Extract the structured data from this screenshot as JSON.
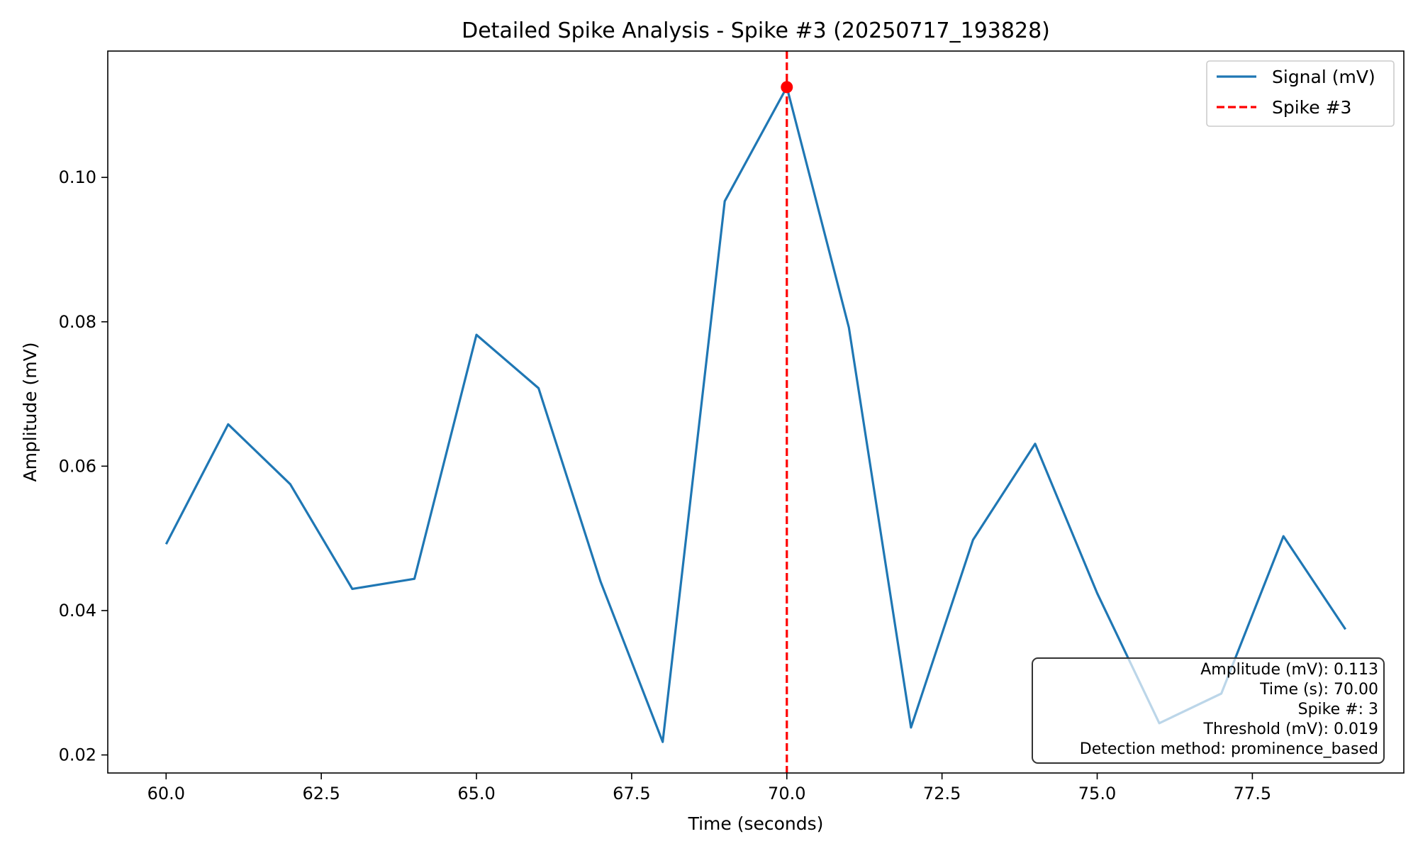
{
  "chart_data": {
    "type": "line",
    "title": "Detailed Spike Analysis - Spike #3 (20250717_193828)",
    "xlabel": "Time (seconds)",
    "ylabel": "Amplitude (mV)",
    "xlim": [
      59.06,
      79.94
    ],
    "ylim": [
      0.0175,
      0.1175
    ],
    "xticks": [
      60.0,
      62.5,
      65.0,
      67.5,
      70.0,
      72.5,
      75.0,
      77.5
    ],
    "xtick_labels": [
      "60.0",
      "62.5",
      "65.0",
      "67.5",
      "70.0",
      "72.5",
      "75.0",
      "77.5"
    ],
    "yticks": [
      0.02,
      0.04,
      0.06,
      0.08,
      0.1
    ],
    "ytick_labels": [
      "0.02",
      "0.04",
      "0.06",
      "0.08",
      "0.10"
    ],
    "grid": false,
    "legend_position": "top-right",
    "series": [
      {
        "name": "Signal (mV)",
        "color": "#1f77b4",
        "style": "solid",
        "x": [
          60,
          61,
          62,
          63,
          64,
          65,
          66,
          67,
          68,
          69,
          70,
          71,
          72,
          73,
          74,
          75,
          76,
          77,
          78,
          79
        ],
        "values": [
          0.0492,
          0.0658,
          0.0575,
          0.043,
          0.0444,
          0.0782,
          0.0708,
          0.044,
          0.0218,
          0.0967,
          0.1125,
          0.0792,
          0.0238,
          0.0498,
          0.0631,
          0.0424,
          0.0244,
          0.0285,
          0.0503,
          0.0374
        ]
      }
    ],
    "spike_line": {
      "name": "Spike #3",
      "x": 70.0,
      "color": "#ff0000",
      "style": "dashed"
    },
    "spike_marker": {
      "x": 70.0,
      "y": 0.1125,
      "color": "#ff0000"
    },
    "info_box": {
      "position": "bottom-right",
      "lines": [
        "Amplitude (mV): 0.113",
        "Time (s): 70.00",
        "Spike #: 3",
        "Threshold (mV): 0.019",
        "Detection method: prominence_based"
      ]
    }
  }
}
